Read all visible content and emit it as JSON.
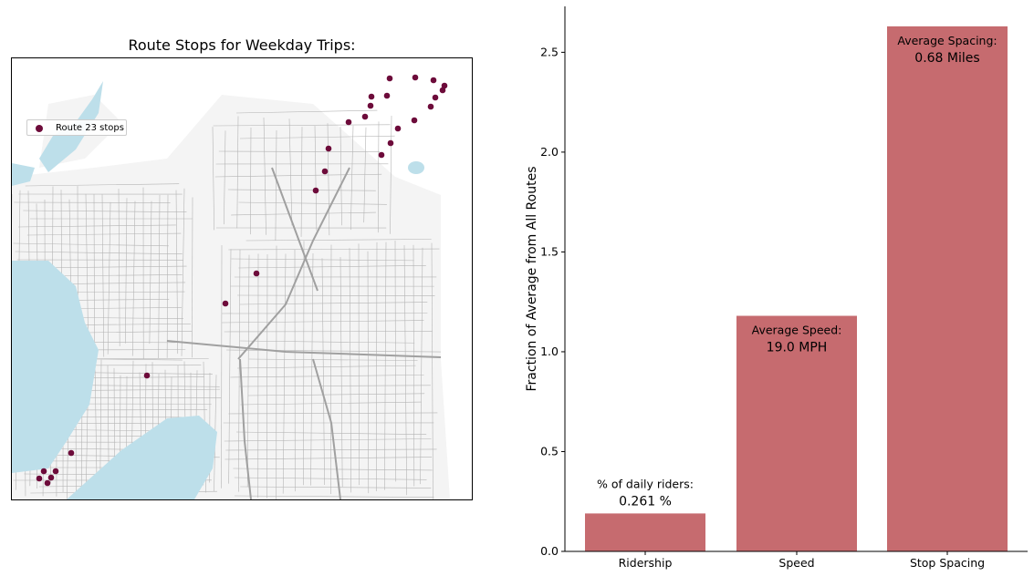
{
  "map": {
    "title": "Route Stops for Weekday Trips:",
    "legend_label": "Route 23 stops",
    "stop_color": "#6d0b3a",
    "water_color": "#bddfea",
    "land_color": "#f4f4f4",
    "road_color": "#b4b4b4"
  },
  "chart_data": {
    "type": "bar",
    "categories": [
      "Ridership",
      "Speed",
      "Stop Spacing"
    ],
    "values": [
      0.19,
      1.18,
      2.63
    ],
    "ylabel": "Fraction of Average from All Routes",
    "ylim": [
      0,
      2.73
    ],
    "yticks": [
      "0.0",
      "0.5",
      "1.0",
      "1.5",
      "2.0",
      "2.5"
    ],
    "bar_color": "#c66b6f",
    "annotations": [
      {
        "label": "% of daily riders:",
        "value": "0.261 %"
      },
      {
        "label": "Average Speed:",
        "value": "19.0 MPH"
      },
      {
        "label": "Average Spacing:",
        "value": "0.68 Miles"
      }
    ]
  }
}
